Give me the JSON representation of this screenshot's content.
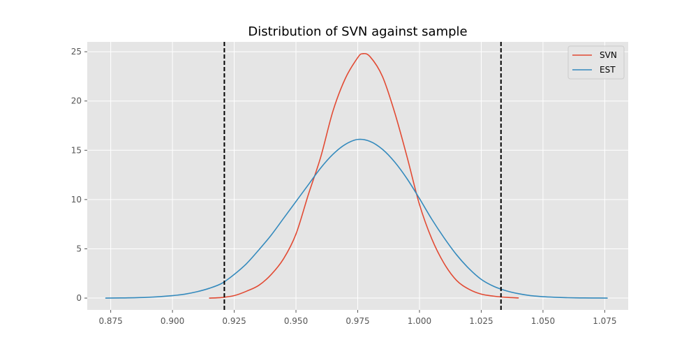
{
  "chart_data": {
    "type": "line",
    "title": "Distribution of SVN against sample",
    "xlabel": "",
    "ylabel": "",
    "xlim": [
      0.8655,
      1.0845
    ],
    "ylim": [
      -1.2,
      26.0
    ],
    "x_ticks": [
      "0.875",
      "0.900",
      "0.925",
      "0.950",
      "0.975",
      "1.000",
      "1.025",
      "1.050",
      "1.075"
    ],
    "y_ticks": [
      "0",
      "5",
      "10",
      "15",
      "20",
      "25"
    ],
    "grid": true,
    "legend_position": "top-right",
    "series": [
      {
        "name": "SVN",
        "color": "#e24a33",
        "points": [
          [
            0.915,
            0.0
          ],
          [
            0.92,
            0.06
          ],
          [
            0.925,
            0.25
          ],
          [
            0.93,
            0.7
          ],
          [
            0.935,
            1.3
          ],
          [
            0.94,
            2.4
          ],
          [
            0.945,
            4.0
          ],
          [
            0.95,
            6.5
          ],
          [
            0.955,
            10.5
          ],
          [
            0.96,
            14.3
          ],
          [
            0.965,
            19.0
          ],
          [
            0.97,
            22.3
          ],
          [
            0.975,
            24.4
          ],
          [
            0.977,
            24.8
          ],
          [
            0.98,
            24.5
          ],
          [
            0.985,
            22.5
          ],
          [
            0.99,
            18.8
          ],
          [
            0.995,
            14.3
          ],
          [
            1.0,
            9.5
          ],
          [
            1.005,
            6.0
          ],
          [
            1.01,
            3.5
          ],
          [
            1.015,
            1.8
          ],
          [
            1.02,
            0.9
          ],
          [
            1.025,
            0.4
          ],
          [
            1.03,
            0.2
          ],
          [
            1.035,
            0.08
          ],
          [
            1.04,
            0.02
          ]
        ]
      },
      {
        "name": "EST",
        "color": "#348abd",
        "points": [
          [
            0.873,
            0.0
          ],
          [
            0.88,
            0.02
          ],
          [
            0.89,
            0.08
          ],
          [
            0.9,
            0.25
          ],
          [
            0.905,
            0.4
          ],
          [
            0.91,
            0.65
          ],
          [
            0.915,
            1.0
          ],
          [
            0.92,
            1.5
          ],
          [
            0.925,
            2.4
          ],
          [
            0.93,
            3.5
          ],
          [
            0.935,
            4.9
          ],
          [
            0.94,
            6.4
          ],
          [
            0.945,
            8.1
          ],
          [
            0.95,
            9.8
          ],
          [
            0.955,
            11.5
          ],
          [
            0.96,
            13.2
          ],
          [
            0.965,
            14.6
          ],
          [
            0.97,
            15.6
          ],
          [
            0.975,
            16.1
          ],
          [
            0.98,
            15.9
          ],
          [
            0.985,
            15.1
          ],
          [
            0.99,
            13.8
          ],
          [
            0.995,
            12.1
          ],
          [
            1.0,
            10.1
          ],
          [
            1.005,
            8.0
          ],
          [
            1.01,
            6.1
          ],
          [
            1.015,
            4.4
          ],
          [
            1.02,
            3.0
          ],
          [
            1.025,
            1.9
          ],
          [
            1.03,
            1.2
          ],
          [
            1.035,
            0.75
          ],
          [
            1.04,
            0.45
          ],
          [
            1.045,
            0.25
          ],
          [
            1.05,
            0.14
          ],
          [
            1.055,
            0.08
          ],
          [
            1.06,
            0.04
          ],
          [
            1.065,
            0.02
          ],
          [
            1.07,
            0.01
          ],
          [
            1.076,
            0.0
          ]
        ]
      }
    ],
    "vlines": [
      0.921,
      1.033
    ],
    "vline_color": "#000000"
  }
}
